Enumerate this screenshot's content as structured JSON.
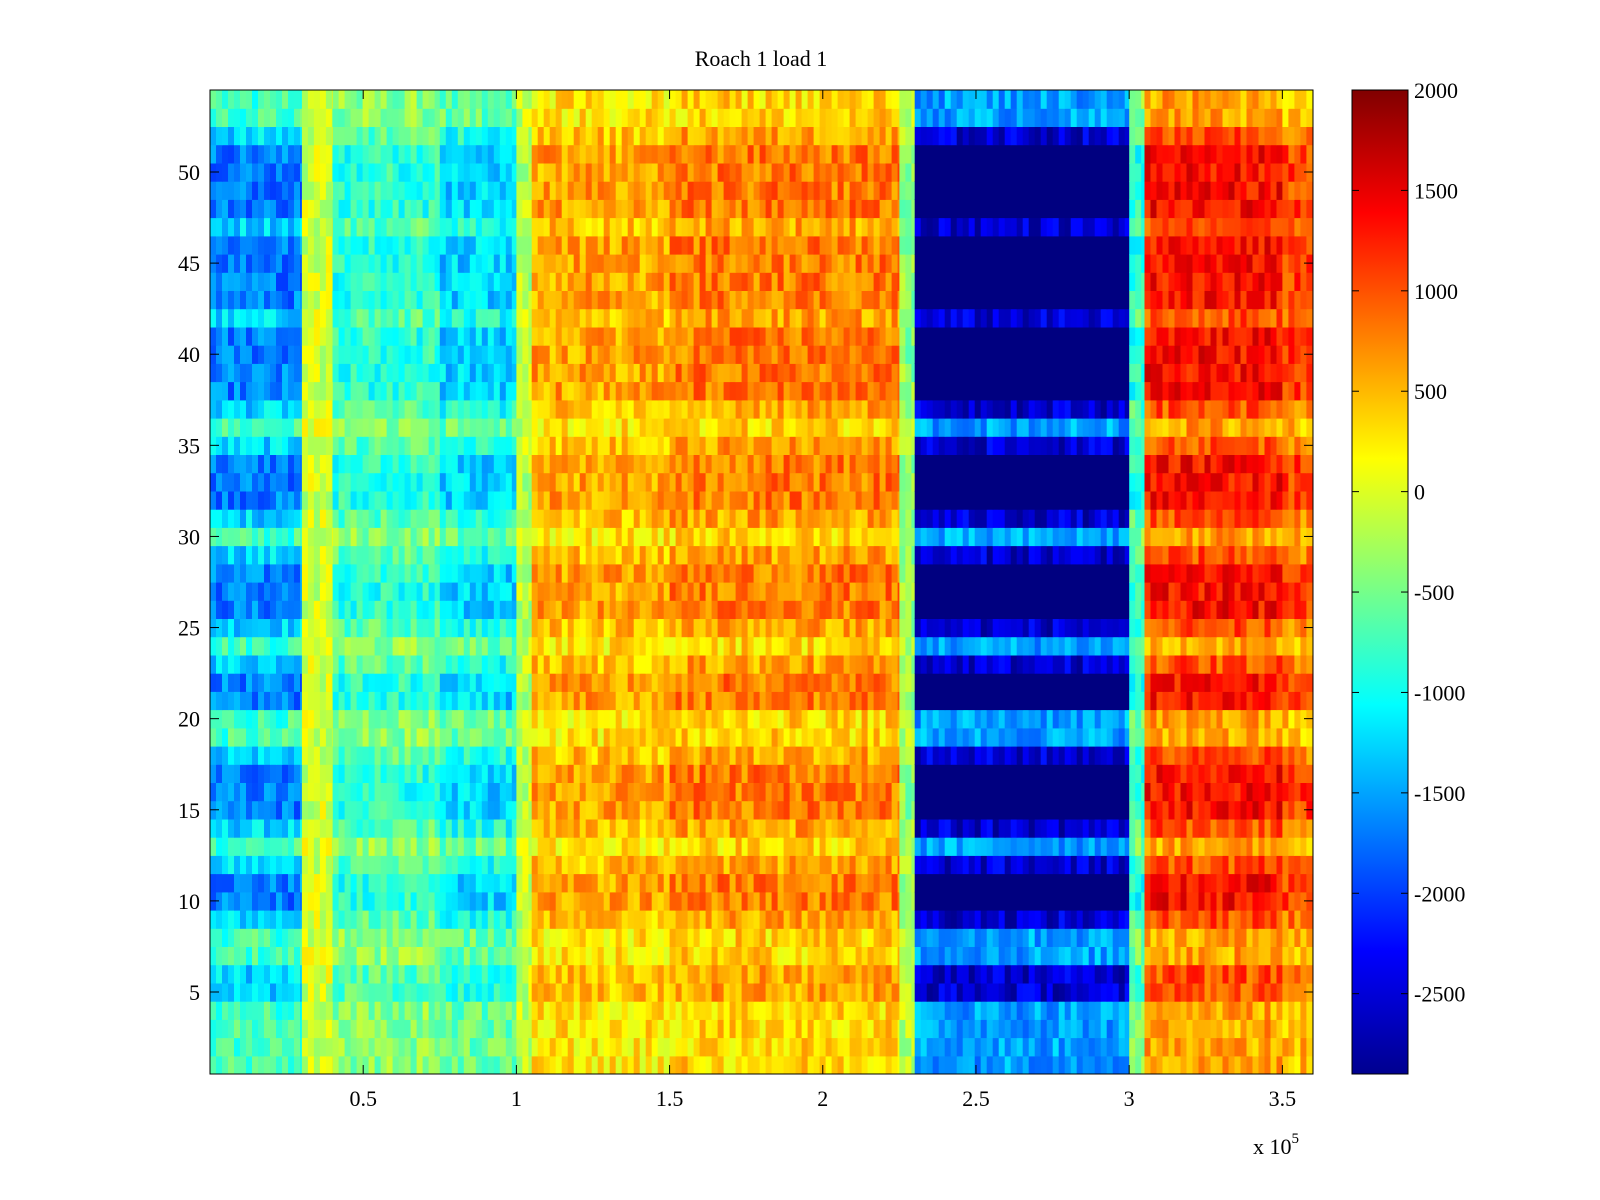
{
  "chart_data": {
    "type": "heatmap",
    "title": "Roach 1 load 1",
    "xlabel": "",
    "ylabel": "",
    "x_exponent_label": "x 10",
    "x_exponent_power": "5",
    "xlim": [
      0,
      360000
    ],
    "ylim": [
      0.5,
      54.5
    ],
    "x_ticks": [
      {
        "value": 50000,
        "label": "0.5"
      },
      {
        "value": 100000,
        "label": "1"
      },
      {
        "value": 150000,
        "label": "1.5"
      },
      {
        "value": 200000,
        "label": "2"
      },
      {
        "value": 250000,
        "label": "2.5"
      },
      {
        "value": 300000,
        "label": "3"
      },
      {
        "value": 350000,
        "label": "3.5"
      }
    ],
    "y_ticks": [
      {
        "value": 5,
        "label": "5"
      },
      {
        "value": 10,
        "label": "10"
      },
      {
        "value": 15,
        "label": "15"
      },
      {
        "value": 20,
        "label": "20"
      },
      {
        "value": 25,
        "label": "25"
      },
      {
        "value": 30,
        "label": "30"
      },
      {
        "value": 35,
        "label": "35"
      },
      {
        "value": 40,
        "label": "40"
      },
      {
        "value": 45,
        "label": "45"
      },
      {
        "value": 50,
        "label": "50"
      }
    ],
    "colorbar": {
      "colormap": "jet",
      "clim": [
        -2900,
        2000
      ],
      "ticks": [
        {
          "value": 2000,
          "label": "2000"
        },
        {
          "value": 1500,
          "label": "1500"
        },
        {
          "value": 1000,
          "label": "1000"
        },
        {
          "value": 500,
          "label": "500"
        },
        {
          "value": 0,
          "label": "0"
        },
        {
          "value": -500,
          "label": "-500"
        },
        {
          "value": -1000,
          "label": "-1000"
        },
        {
          "value": -1500,
          "label": "-1500"
        },
        {
          "value": -2000,
          "label": "-2000"
        },
        {
          "value": -2500,
          "label": "-2500"
        }
      ]
    },
    "rows": 54,
    "column_bands": [
      {
        "x_start": 0,
        "x_end": 30000,
        "value": -1250
      },
      {
        "x_start": 30000,
        "x_end": 40000,
        "value": -50
      },
      {
        "x_start": 40000,
        "x_end": 75000,
        "value": -650
      },
      {
        "x_start": 75000,
        "x_end": 100000,
        "value": -950
      },
      {
        "x_start": 100000,
        "x_end": 105000,
        "value": -150
      },
      {
        "x_start": 105000,
        "x_end": 150000,
        "value": 450
      },
      {
        "x_start": 150000,
        "x_end": 225000,
        "value": 600
      },
      {
        "x_start": 225000,
        "x_end": 230000,
        "value": -300
      },
      {
        "x_start": 230000,
        "x_end": 300000,
        "value": -2500
      },
      {
        "x_start": 300000,
        "x_end": 305000,
        "value": -700
      },
      {
        "x_start": 305000,
        "x_end": 350000,
        "value": 1000
      },
      {
        "x_start": 350000,
        "x_end": 360000,
        "value": 800
      }
    ],
    "strong_rows": [
      10,
      11,
      15,
      16,
      17,
      21,
      22,
      26,
      27,
      28,
      32,
      33,
      34,
      38,
      39,
      40,
      41,
      43,
      44,
      45,
      46,
      48,
      49,
      50,
      51
    ],
    "weak_rows": [
      1,
      2,
      3,
      4,
      7,
      8,
      13,
      19,
      20,
      24,
      30,
      36,
      53,
      54
    ]
  }
}
